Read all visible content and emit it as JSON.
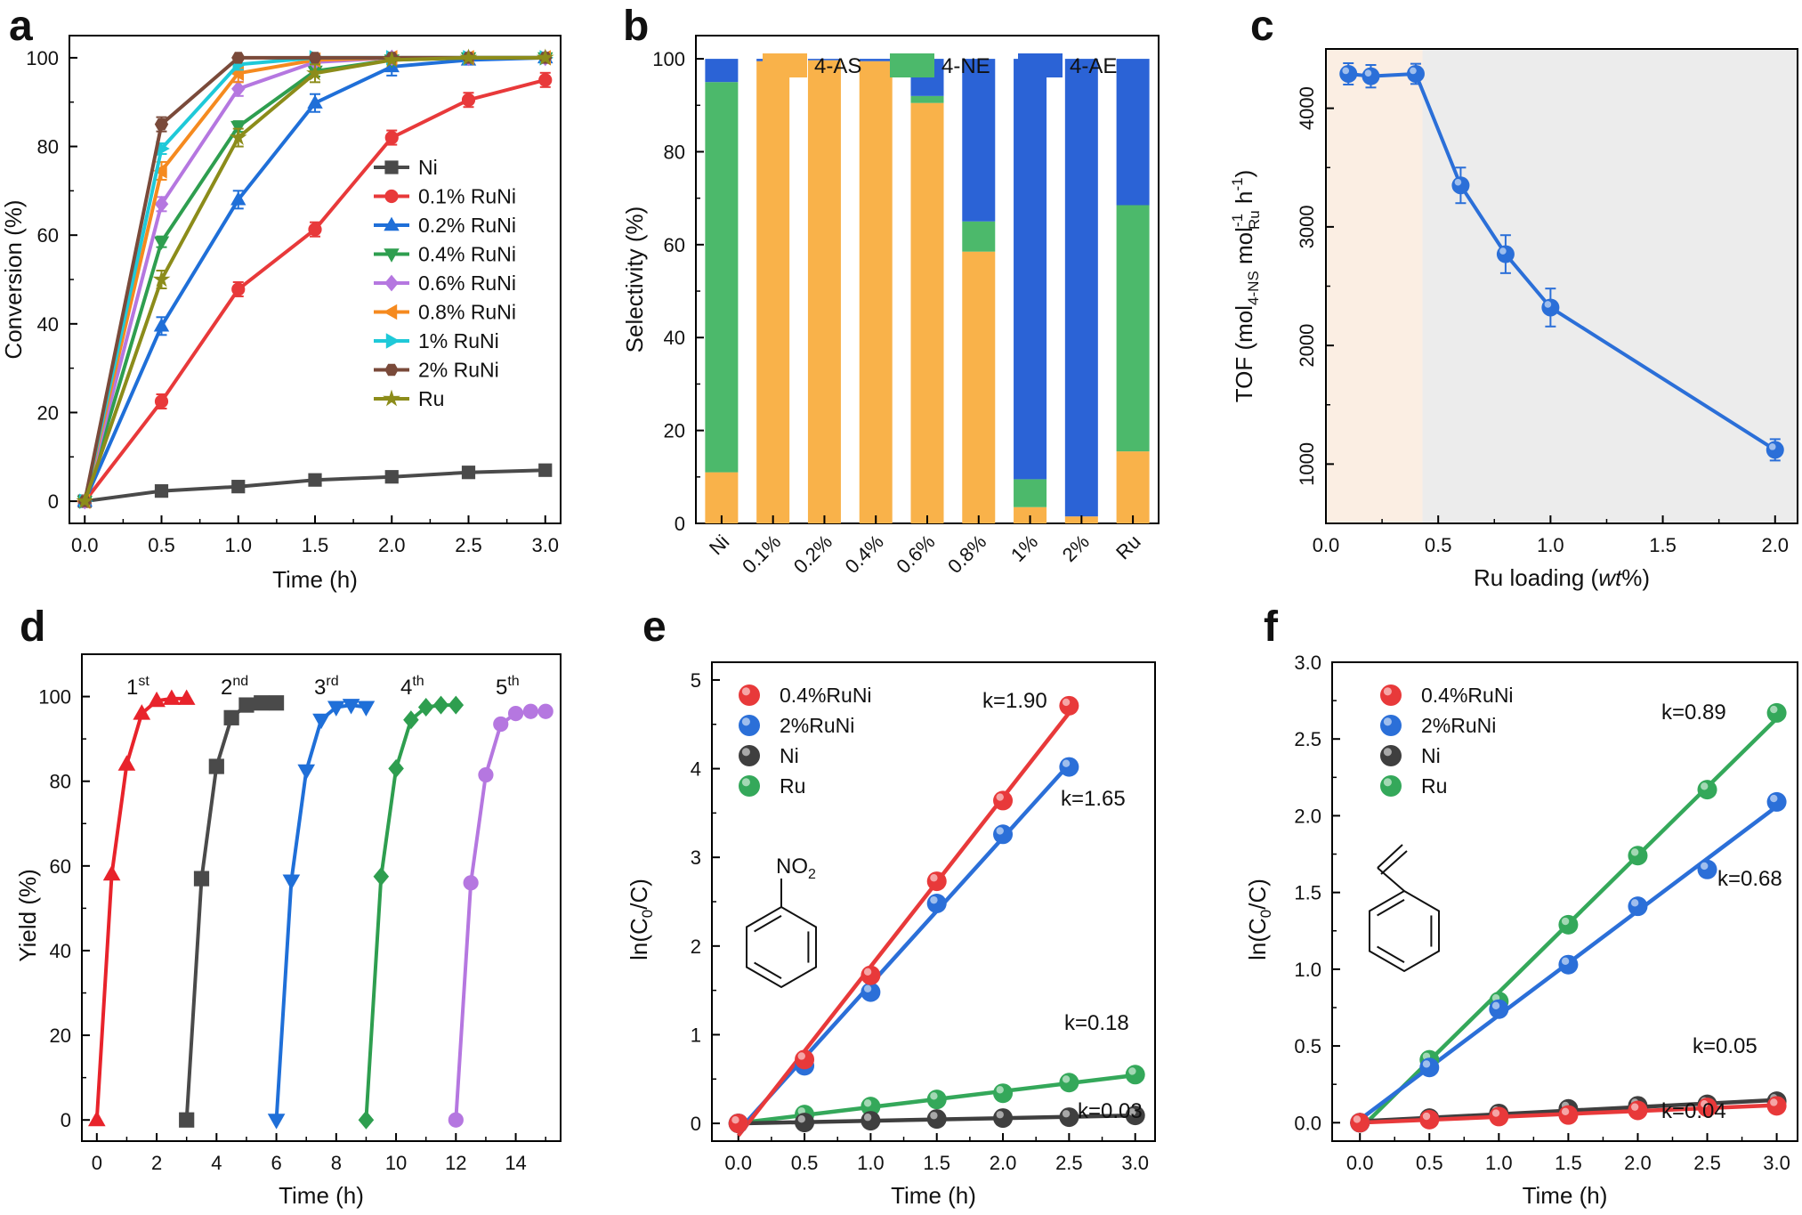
{
  "chart_data": [
    {
      "panel": "a",
      "type": "line",
      "xlabel": "Time (h)",
      "ylabel": "Conversion (%)",
      "xlim": [
        -0.1,
        3.1
      ],
      "ylim": [
        -5,
        105
      ],
      "xticks": [
        "0.0",
        "0.5",
        "1.0",
        "1.5",
        "2.0",
        "2.5",
        "3.0"
      ],
      "yticks": [
        "0",
        "20",
        "40",
        "60",
        "80",
        "100"
      ],
      "x": [
        0,
        0.5,
        1.0,
        1.5,
        2.0,
        2.5,
        3.0
      ],
      "series": [
        {
          "name": "Ni",
          "color": "#4a4a4a",
          "marker": "square",
          "values": [
            0,
            2.3,
            3.3,
            4.8,
            5.5,
            6.5,
            7.0
          ]
        },
        {
          "name": "0.1% RuNi",
          "color": "#e8393a",
          "marker": "circle",
          "values": [
            0,
            22.5,
            47.8,
            61.3,
            82.0,
            90.5,
            95.0
          ]
        },
        {
          "name": "0.2% RuNi",
          "color": "#1f6fd8",
          "marker": "triangle-up",
          "values": [
            0,
            39.5,
            68.0,
            89.8,
            98.0,
            99.5,
            100
          ]
        },
        {
          "name": "0.4% RuNi",
          "color": "#2e9e4f",
          "marker": "triangle-down",
          "values": [
            0,
            58.5,
            84.5,
            97.0,
            99.5,
            100,
            100
          ]
        },
        {
          "name": "0.6% RuNi",
          "color": "#b577e0",
          "marker": "diamond",
          "values": [
            0,
            67.0,
            93.0,
            99.0,
            100,
            100,
            100
          ]
        },
        {
          "name": "0.8% RuNi",
          "color": "#f58a1f",
          "marker": "triangle-left",
          "values": [
            0,
            74.5,
            96.5,
            99.5,
            100,
            100,
            100
          ]
        },
        {
          "name": "1% RuNi",
          "color": "#1fc9d8",
          "marker": "triangle-right",
          "values": [
            0,
            79.5,
            98.5,
            100,
            100,
            100,
            100
          ]
        },
        {
          "name": "2% RuNi",
          "color": "#7a4a3a",
          "marker": "hexagon",
          "values": [
            0,
            85.0,
            100,
            100,
            100,
            100,
            100
          ]
        },
        {
          "name": "Ru",
          "color": "#8c8c1a",
          "marker": "star",
          "values": [
            0,
            50.0,
            82.0,
            96.5,
            99.5,
            100,
            100
          ]
        }
      ]
    },
    {
      "panel": "b",
      "type": "bar",
      "stacked": true,
      "ylabel": "Selectivity (%)",
      "ylim": [
        0,
        105
      ],
      "yticks": [
        "0",
        "20",
        "40",
        "60",
        "80",
        "100"
      ],
      "categories": [
        "Ni",
        "0.1%",
        "0.2%",
        "0.4%",
        "0.6%",
        "0.8%",
        "1%",
        "2%",
        "Ru"
      ],
      "series": [
        {
          "name": "4-AS",
          "color": "#f9b24a",
          "values": [
            11,
            99.5,
            99.7,
            99.5,
            90.5,
            58.5,
            3.5,
            1.5,
            15.5
          ]
        },
        {
          "name": "4-NE",
          "color": "#4cb96b",
          "values": [
            84,
            0,
            0,
            0,
            1.5,
            6.5,
            6.0,
            0,
            53.0
          ]
        },
        {
          "name": "4-AE",
          "color": "#2b63d6",
          "values": [
            5,
            0.5,
            0.3,
            0.5,
            8.0,
            35.0,
            90.5,
            98.5,
            31.5
          ]
        }
      ]
    },
    {
      "panel": "c",
      "type": "line",
      "xlabel_pre": "Ru loading (",
      "xlabel_em": "wt",
      "xlabel_post": "%)",
      "ylabel_parts": [
        "TOF (mol",
        "4-NS",
        " mol",
        "-1",
        "Ru",
        " h",
        "-1",
        ")"
      ],
      "xlim": [
        0,
        2.1
      ],
      "ylim": [
        500,
        4500
      ],
      "xticks": [
        "0.0",
        "0.5",
        "1.0",
        "1.5",
        "2.0"
      ],
      "yticks": [
        "1000",
        "2000",
        "3000",
        "4000"
      ],
      "shade_split": 0.43,
      "color": "#2b6fd8",
      "x": [
        0.1,
        0.2,
        0.4,
        0.6,
        0.8,
        1.0,
        2.0
      ],
      "values": [
        4290,
        4270,
        4290,
        3350,
        2770,
        2320,
        1120
      ]
    },
    {
      "panel": "d",
      "type": "line",
      "xlabel": "Time (h)",
      "ylabel": "Yield (%)",
      "xlim": [
        -0.5,
        15.5
      ],
      "ylim": [
        -5,
        110
      ],
      "xticks": [
        "0",
        "2",
        "4",
        "6",
        "8",
        "10",
        "12",
        "14"
      ],
      "yticks": [
        "0",
        "20",
        "40",
        "60",
        "80",
        "100"
      ],
      "series": [
        {
          "label": "1",
          "sup": "st",
          "color": "#e8232b",
          "marker": "triangle-up",
          "x": [
            0,
            0.5,
            1.0,
            1.5,
            2.0,
            2.5,
            3.0
          ],
          "values": [
            0,
            58,
            84,
            96,
            99,
            99.5,
            99.5
          ]
        },
        {
          "label": "2",
          "sup": "nd",
          "color": "#4a4a4a",
          "marker": "square",
          "x": [
            3,
            3.5,
            4.0,
            4.5,
            5.0,
            5.5,
            6.0
          ],
          "values": [
            0,
            57,
            83.5,
            95,
            98,
            98.5,
            98.5
          ]
        },
        {
          "label": "3",
          "sup": "rd",
          "color": "#1f6fd8",
          "marker": "triangle-down",
          "x": [
            6,
            6.5,
            7.0,
            7.5,
            8.0,
            8.5,
            9.0
          ],
          "values": [
            0,
            56.5,
            82.5,
            94.5,
            97.5,
            98,
            97.5
          ]
        },
        {
          "label": "4",
          "sup": "th",
          "color": "#2e9e4f",
          "marker": "diamond",
          "x": [
            9,
            9.5,
            10.0,
            10.5,
            11.0,
            11.5,
            12.0
          ],
          "values": [
            0,
            57.5,
            83,
            94.5,
            97.5,
            98,
            98
          ]
        },
        {
          "label": "5",
          "sup": "th",
          "color": "#b577e0",
          "marker": "circle",
          "x": [
            12,
            12.5,
            13.0,
            13.5,
            14.0,
            14.5,
            15.0
          ],
          "values": [
            0,
            56,
            81.5,
            93.5,
            96,
            96.5,
            96.5
          ]
        }
      ]
    },
    {
      "panel": "e",
      "type": "scatter",
      "xlabel": "Time (h)",
      "ylabel_parts": [
        "ln(C",
        "0",
        "/C)"
      ],
      "xlim": [
        -0.2,
        3.15
      ],
      "ylim": [
        -0.2,
        5.2
      ],
      "xticks": [
        "0.0",
        "0.5",
        "1.0",
        "1.5",
        "2.0",
        "2.5",
        "3.0"
      ],
      "yticks": [
        "0",
        "1",
        "2",
        "3",
        "4",
        "5"
      ],
      "x": [
        0,
        0.5,
        1.0,
        1.5,
        2.0,
        2.5,
        3.0
      ],
      "molecule": "nitrobenzene",
      "mol_label": "NO",
      "mol_sub": "2",
      "series": [
        {
          "name": "0.4%RuNi",
          "color": "#e8393a",
          "values": [
            0,
            0.72,
            1.67,
            2.73,
            3.64,
            4.71,
            null
          ],
          "k": "k=1.90",
          "fit_end": 2.5
        },
        {
          "name": "2%RuNi",
          "color": "#2b6fd8",
          "values": [
            0,
            0.65,
            1.48,
            2.48,
            3.26,
            4.02,
            null
          ],
          "k": "k=1.65",
          "fit_end": 2.5
        },
        {
          "name": "Ni",
          "color": "#3f3f3f",
          "values": [
            0,
            0.01,
            0.03,
            0.05,
            0.06,
            0.07,
            0.09
          ],
          "k": "k=0.03",
          "fit_end": 3.0
        },
        {
          "name": "Ru",
          "color": "#34a85a",
          "values": [
            0,
            0.1,
            0.19,
            0.27,
            0.34,
            0.46,
            0.55
          ],
          "k": "k=0.18",
          "fit_end": 3.0
        }
      ]
    },
    {
      "panel": "f",
      "type": "scatter",
      "xlabel": "Time (h)",
      "ylabel_parts": [
        "ln(C",
        "0",
        "/C)"
      ],
      "xlim": [
        -0.2,
        3.15
      ],
      "ylim": [
        -0.12,
        3.0
      ],
      "xticks": [
        "0.0",
        "0.5",
        "1.0",
        "1.5",
        "2.0",
        "2.5",
        "3.0"
      ],
      "yticks": [
        "0.0",
        "0.5",
        "1.0",
        "1.5",
        "2.0",
        "2.5",
        "3.0"
      ],
      "x": [
        0,
        0.5,
        1.0,
        1.5,
        2.0,
        2.5,
        3.0
      ],
      "molecule": "styrene",
      "series": [
        {
          "name": "0.4%RuNi",
          "color": "#e8393a",
          "values": [
            0,
            0.02,
            0.04,
            0.05,
            0.08,
            0.1,
            0.11
          ],
          "k": "k=0.04",
          "fit_end": 3.0
        },
        {
          "name": "2%RuNi",
          "color": "#2b6fd8",
          "values": [
            0,
            0.36,
            0.74,
            1.03,
            1.41,
            1.65,
            2.09
          ],
          "k": "k=0.68",
          "fit_end": 3.0
        },
        {
          "name": "Ni",
          "color": "#3f3f3f",
          "values": [
            0,
            0.03,
            0.06,
            0.09,
            0.11,
            0.12,
            0.14
          ],
          "k": "k=0.05",
          "fit_end": 3.0
        },
        {
          "name": "Ru",
          "color": "#34a85a",
          "values": [
            0,
            0.41,
            0.79,
            1.29,
            1.74,
            2.17,
            2.67
          ],
          "k": "k=0.89",
          "fit_end": 3.0
        }
      ]
    }
  ]
}
